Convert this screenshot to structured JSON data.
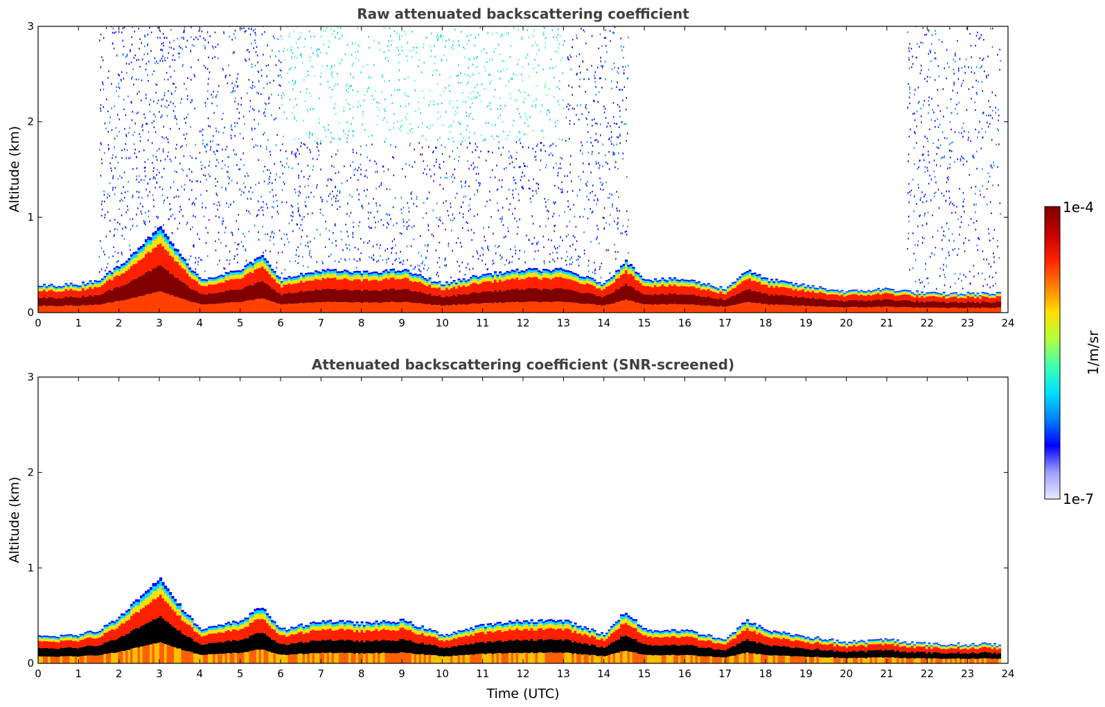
{
  "chart_data": [
    {
      "type": "heatmap",
      "title": "Raw attenuated backscattering coefficient",
      "xlabel": "",
      "ylabel": "Altitude (km)",
      "xlim": [
        0,
        24
      ],
      "ylim": [
        0,
        3
      ],
      "xticks": [
        "0",
        "1",
        "2",
        "3",
        "4",
        "5",
        "6",
        "7",
        "8",
        "9",
        "10",
        "11",
        "12",
        "13",
        "14",
        "15",
        "16",
        "17",
        "18",
        "19",
        "20",
        "21",
        "22",
        "23",
        "24"
      ],
      "yticks": [
        "0",
        "1",
        "2",
        "3"
      ],
      "screened": false,
      "layer_top_km": {
        "time_utc": [
          0,
          1,
          1.5,
          2,
          2.5,
          3,
          3.5,
          4,
          4.5,
          5,
          5.5,
          6,
          7,
          8,
          9,
          10,
          11,
          12,
          13,
          14,
          14.5,
          15,
          16,
          17,
          17.5,
          18,
          19,
          20,
          21,
          22,
          23,
          23.8
        ],
        "top": [
          0.28,
          0.3,
          0.35,
          0.5,
          0.7,
          0.9,
          0.6,
          0.35,
          0.4,
          0.45,
          0.6,
          0.35,
          0.45,
          0.42,
          0.45,
          0.3,
          0.4,
          0.45,
          0.45,
          0.3,
          0.55,
          0.35,
          0.35,
          0.25,
          0.45,
          0.35,
          0.28,
          0.22,
          0.25,
          0.2,
          0.2,
          0.2
        ]
      },
      "noise_region_time_utc": [
        [
          1.5,
          14.6
        ],
        [
          21.5,
          23.8
        ]
      ],
      "noise_top_km": 3
    },
    {
      "type": "heatmap",
      "title": "Attenuated backscattering coefficient (SNR-screened)",
      "xlabel": "Time (UTC)",
      "ylabel": "Altitude (km)",
      "xlim": [
        0,
        24
      ],
      "ylim": [
        0,
        3
      ],
      "xticks": [
        "0",
        "1",
        "2",
        "3",
        "4",
        "5",
        "6",
        "7",
        "8",
        "9",
        "10",
        "11",
        "12",
        "13",
        "14",
        "15",
        "16",
        "17",
        "18",
        "19",
        "20",
        "21",
        "22",
        "23",
        "24"
      ],
      "yticks": [
        "0",
        "1",
        "2",
        "3"
      ],
      "screened": true,
      "layer_top_km": {
        "time_utc": [
          0,
          1,
          1.5,
          2,
          2.5,
          3,
          3.5,
          4,
          4.5,
          5,
          5.5,
          6,
          7,
          8,
          9,
          10,
          11,
          12,
          13,
          14,
          14.5,
          15,
          16,
          17,
          17.5,
          18,
          19,
          20,
          21,
          22,
          23,
          23.8
        ],
        "top": [
          0.28,
          0.3,
          0.35,
          0.5,
          0.7,
          0.9,
          0.6,
          0.35,
          0.4,
          0.45,
          0.6,
          0.35,
          0.45,
          0.42,
          0.45,
          0.3,
          0.4,
          0.45,
          0.45,
          0.3,
          0.55,
          0.35,
          0.35,
          0.25,
          0.45,
          0.35,
          0.28,
          0.22,
          0.25,
          0.2,
          0.2,
          0.2
        ]
      }
    }
  ],
  "colorbar": {
    "max_label": "1e-4",
    "min_label": "1e-7",
    "unit_label": "1/m/sr",
    "colors": [
      "#e8e8ff",
      "#a0a0ff",
      "#0000ff",
      "#0080ff",
      "#00e0ff",
      "#40ffb0",
      "#b0ff40",
      "#ffe000",
      "#ff8000",
      "#ff2000",
      "#c00000",
      "#800000"
    ]
  }
}
